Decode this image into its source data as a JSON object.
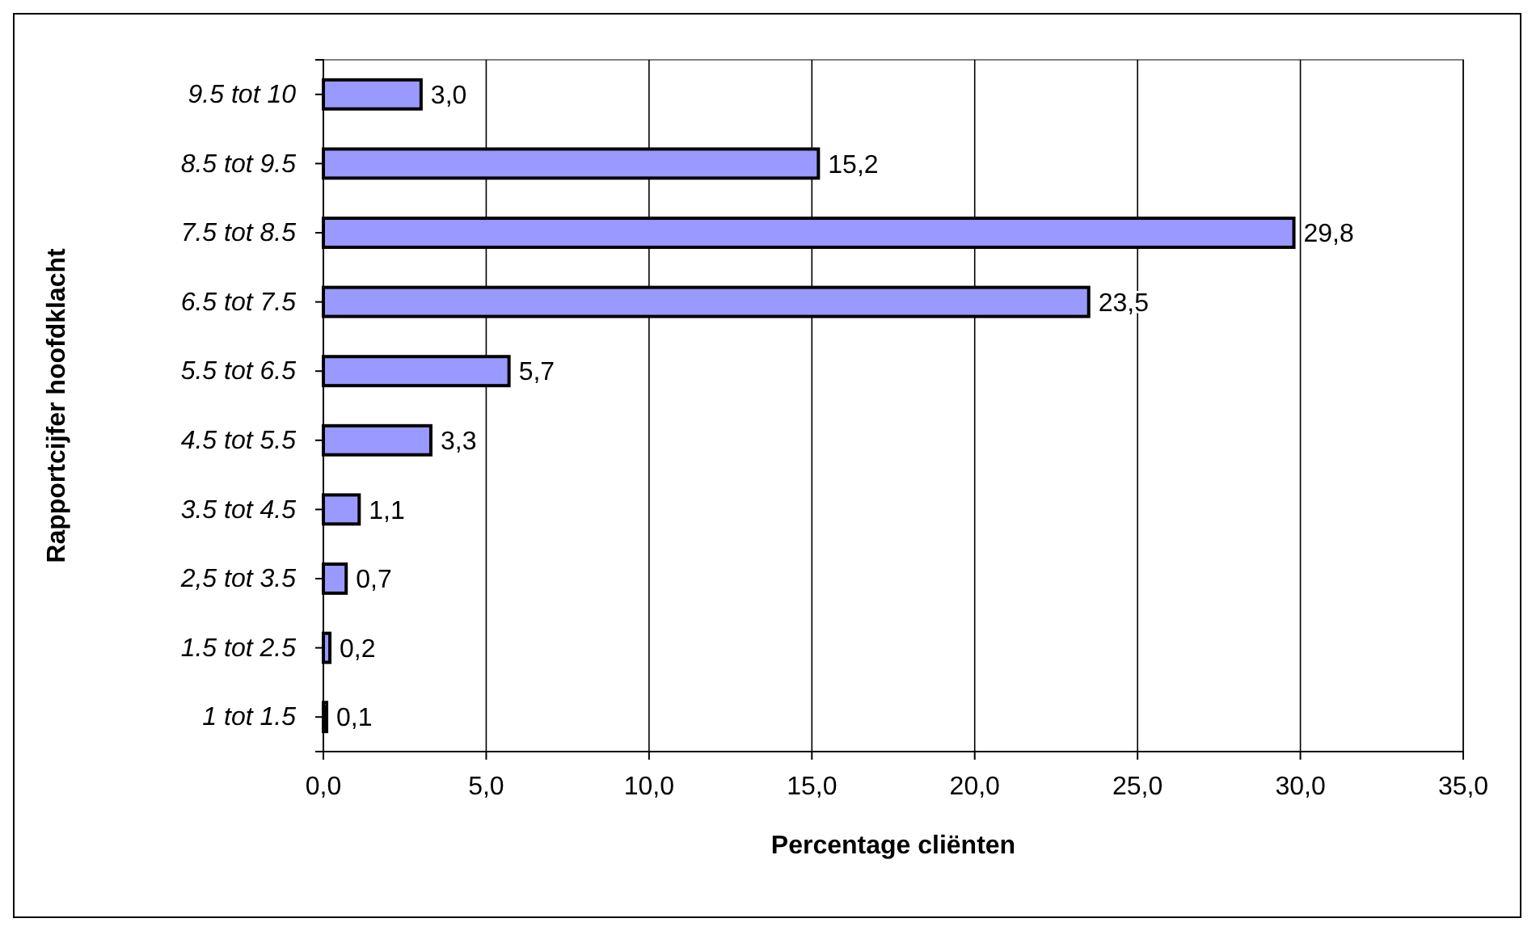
{
  "chart_data": {
    "type": "bar",
    "orientation": "horizontal",
    "xlabel": "Percentage cliënten",
    "ylabel": "Rapportcijfer hoofdklacht",
    "categories": [
      "9.5 tot 10",
      "8.5 tot 9.5",
      "7.5 tot 8.5",
      "6.5 tot 7.5",
      "5.5 tot 6.5",
      "4.5 tot 5.5",
      "3.5 tot 4.5",
      "2,5 tot 3.5",
      "1.5 tot 2.5",
      "1 tot 1.5"
    ],
    "values": [
      3.0,
      15.2,
      29.8,
      23.5,
      5.7,
      3.3,
      1.1,
      0.7,
      0.2,
      0.1
    ],
    "value_labels": [
      "3,0",
      "15,2",
      "29,8",
      "23,5",
      "5,7",
      "3,3",
      "1,1",
      "0,7",
      "0,2",
      "0,1"
    ],
    "color": "#9999ff",
    "xlim": [
      0,
      35
    ],
    "xticks": [
      {
        "value": 0,
        "label": "0,0"
      },
      {
        "value": 5,
        "label": "5,0"
      },
      {
        "value": 10,
        "label": "10,0"
      },
      {
        "value": 15,
        "label": "15,0"
      },
      {
        "value": 20,
        "label": "20,0"
      },
      {
        "value": 25,
        "label": "25,0"
      },
      {
        "value": 30,
        "label": "30,0"
      },
      {
        "value": 35,
        "label": "35,0"
      }
    ],
    "grid": "x"
  }
}
